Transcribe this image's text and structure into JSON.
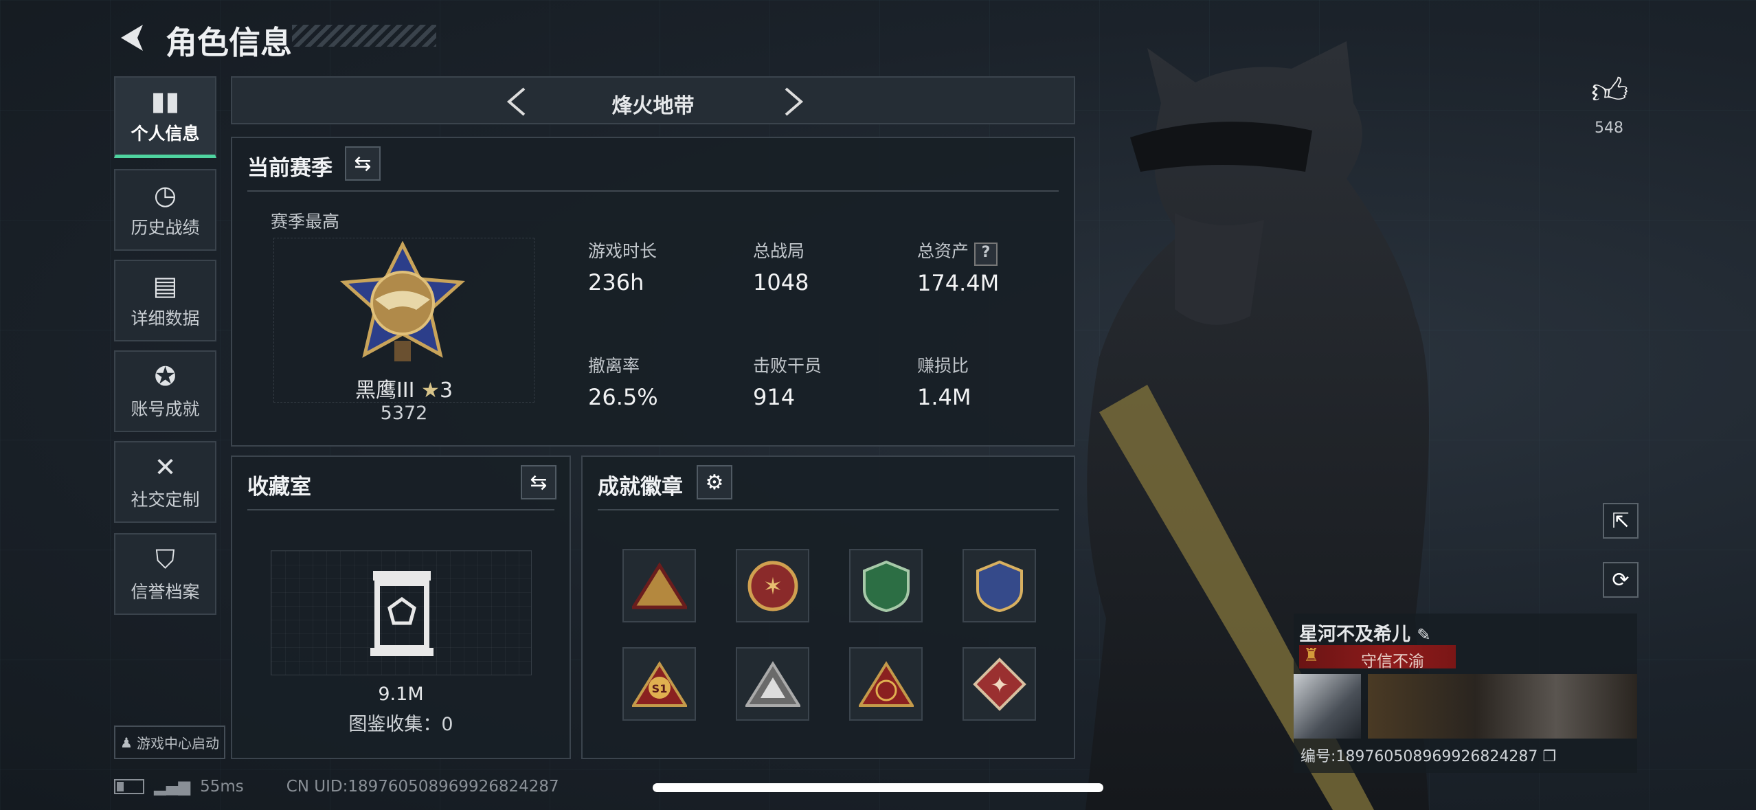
{
  "header": {
    "title": "角色信息",
    "mode": "烽火地带"
  },
  "sidebar": {
    "items": [
      {
        "label": "个人信息",
        "icon": "bar-chart-icon",
        "glyph": "▮▮"
      },
      {
        "label": "历史战绩",
        "icon": "clock-icon",
        "glyph": "◷"
      },
      {
        "label": "详细数据",
        "icon": "folder-icon",
        "glyph": "▤"
      },
      {
        "label": "账号成就",
        "icon": "medal-icon",
        "glyph": "✪"
      },
      {
        "label": "社交定制",
        "icon": "tools-icon",
        "glyph": "✕"
      },
      {
        "label": "信誉档案",
        "icon": "shield-icon",
        "glyph": "⛉"
      }
    ],
    "launch": "游戏中心启动"
  },
  "season": {
    "title": "当前赛季",
    "best_label": "赛季最高",
    "rank": "黑鹰III",
    "stars": "3",
    "score": "5372",
    "stats": [
      {
        "label": "游戏时长",
        "value": "236h"
      },
      {
        "label": "总战局",
        "value": "1048"
      },
      {
        "label": "总资产",
        "value": "174.4M"
      },
      {
        "label": "撤离率",
        "value": "26.5%"
      },
      {
        "label": "击败干员",
        "value": "914"
      },
      {
        "label": "赚损比",
        "value": "1.4M"
      }
    ]
  },
  "collection": {
    "title": "收藏室",
    "value": "9.1M",
    "count_text": "图鉴收集：0"
  },
  "badges": {
    "title": "成就徽章",
    "items": [
      "badge-1",
      "badge-2",
      "badge-3",
      "badge-4",
      "badge-s1",
      "badge-6",
      "badge-7",
      "badge-8"
    ]
  },
  "likes": "548",
  "profile": {
    "name": "星河不及希儿",
    "title": "守信不渝",
    "id_text": "编号:1897605089699268242​87"
  },
  "status": {
    "ping": "55ms",
    "uid": "CN UID:189760508969926824287"
  },
  "colors": {
    "accent": "#4fd4a0",
    "title_red": "#8e1b1b"
  }
}
